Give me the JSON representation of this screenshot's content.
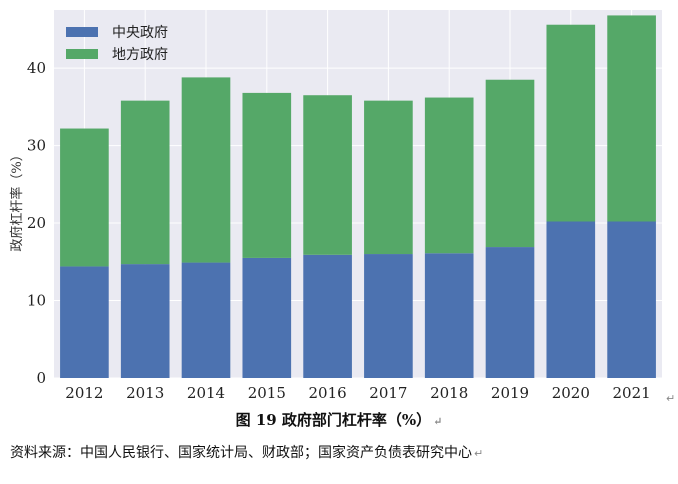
{
  "chart_data": {
    "type": "bar",
    "stacked": true,
    "title": "",
    "xlabel": "",
    "ylabel": "政府杠杆率（%）",
    "categories": [
      "2012",
      "2013",
      "2014",
      "2015",
      "2016",
      "2017",
      "2018",
      "2019",
      "2020",
      "2021"
    ],
    "series": [
      {
        "name": "中央政府",
        "color": "#4c72b0",
        "values": [
          14.4,
          14.7,
          14.9,
          15.5,
          15.9,
          16.0,
          16.1,
          16.9,
          20.2,
          20.2
        ]
      },
      {
        "name": "地方政府",
        "color": "#55a868",
        "values": [
          17.8,
          21.1,
          23.9,
          21.3,
          20.6,
          19.8,
          20.1,
          21.6,
          25.4,
          26.6
        ]
      }
    ],
    "ylim": [
      0,
      47.5
    ],
    "yticks": [
      0,
      10,
      20,
      30,
      40
    ],
    "grid": true,
    "legend_position": "top-left",
    "plot_background": "#eaeaf2"
  },
  "caption": "图 19  政府部门杠杆率（%）",
  "source": "资料来源：中国人民银行、国家统计局、财政部；国家资产负债表研究中心",
  "paragraph_mark": "↵"
}
